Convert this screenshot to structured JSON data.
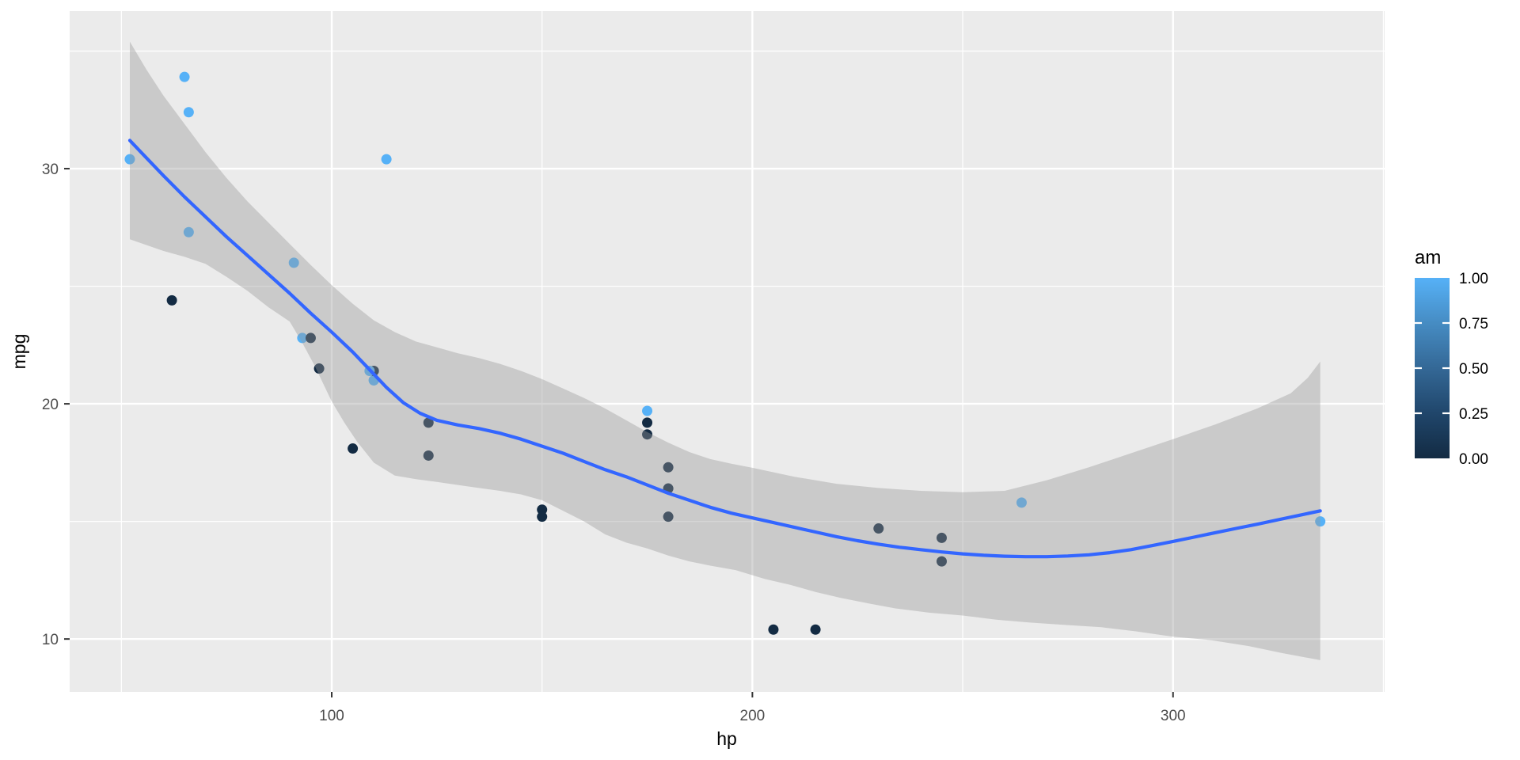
{
  "chart_data": {
    "type": "scatter",
    "title": "",
    "xlabel": "hp",
    "ylabel": "mpg",
    "x_ticks": [
      100,
      200,
      300
    ],
    "x_minor_ticks": [
      50,
      150,
      250,
      350
    ],
    "y_ticks": [
      10,
      20,
      30
    ],
    "y_minor_ticks": [
      15,
      25,
      35
    ],
    "xlim": [
      37.7,
      350.3
    ],
    "ylim": [
      7.75,
      36.7
    ],
    "grid": "major and minor, white on grey panel",
    "legend_position": "right",
    "points": [
      {
        "hp": 110,
        "mpg": 21.0,
        "am": 1
      },
      {
        "hp": 110,
        "mpg": 21.0,
        "am": 1
      },
      {
        "hp": 93,
        "mpg": 22.8,
        "am": 1
      },
      {
        "hp": 110,
        "mpg": 21.4,
        "am": 0
      },
      {
        "hp": 175,
        "mpg": 18.7,
        "am": 0
      },
      {
        "hp": 105,
        "mpg": 18.1,
        "am": 0
      },
      {
        "hp": 245,
        "mpg": 14.3,
        "am": 0
      },
      {
        "hp": 62,
        "mpg": 24.4,
        "am": 0
      },
      {
        "hp": 95,
        "mpg": 22.8,
        "am": 0
      },
      {
        "hp": 123,
        "mpg": 19.2,
        "am": 0
      },
      {
        "hp": 123,
        "mpg": 17.8,
        "am": 0
      },
      {
        "hp": 180,
        "mpg": 16.4,
        "am": 0
      },
      {
        "hp": 180,
        "mpg": 17.3,
        "am": 0
      },
      {
        "hp": 180,
        "mpg": 15.2,
        "am": 0
      },
      {
        "hp": 205,
        "mpg": 10.4,
        "am": 0
      },
      {
        "hp": 215,
        "mpg": 10.4,
        "am": 0
      },
      {
        "hp": 230,
        "mpg": 14.7,
        "am": 0
      },
      {
        "hp": 66,
        "mpg": 32.4,
        "am": 1
      },
      {
        "hp": 52,
        "mpg": 30.4,
        "am": 1
      },
      {
        "hp": 65,
        "mpg": 33.9,
        "am": 1
      },
      {
        "hp": 97,
        "mpg": 21.5,
        "am": 0
      },
      {
        "hp": 150,
        "mpg": 15.5,
        "am": 0
      },
      {
        "hp": 150,
        "mpg": 15.2,
        "am": 0
      },
      {
        "hp": 245,
        "mpg": 13.3,
        "am": 0
      },
      {
        "hp": 175,
        "mpg": 19.2,
        "am": 0
      },
      {
        "hp": 66,
        "mpg": 27.3,
        "am": 1
      },
      {
        "hp": 91,
        "mpg": 26.0,
        "am": 1
      },
      {
        "hp": 113,
        "mpg": 30.4,
        "am": 1
      },
      {
        "hp": 264,
        "mpg": 15.8,
        "am": 1
      },
      {
        "hp": 175,
        "mpg": 19.7,
        "am": 1
      },
      {
        "hp": 335,
        "mpg": 15.0,
        "am": 1
      },
      {
        "hp": 109,
        "mpg": 21.4,
        "am": 1
      }
    ],
    "smooth_line": [
      [
        52,
        31.2
      ],
      [
        56,
        30.45
      ],
      [
        60,
        29.7
      ],
      [
        65,
        28.8
      ],
      [
        70,
        27.95
      ],
      [
        75,
        27.1
      ],
      [
        80,
        26.3
      ],
      [
        85,
        25.5
      ],
      [
        90,
        24.7
      ],
      [
        95,
        23.85
      ],
      [
        100,
        23.05
      ],
      [
        105,
        22.2
      ],
      [
        109,
        21.45
      ],
      [
        113,
        20.7
      ],
      [
        117,
        20.05
      ],
      [
        121,
        19.6
      ],
      [
        125,
        19.3
      ],
      [
        130,
        19.1
      ],
      [
        135,
        18.95
      ],
      [
        140,
        18.75
      ],
      [
        145,
        18.5
      ],
      [
        150,
        18.2
      ],
      [
        155,
        17.9
      ],
      [
        160,
        17.55
      ],
      [
        165,
        17.2
      ],
      [
        170,
        16.9
      ],
      [
        175,
        16.55
      ],
      [
        180,
        16.2
      ],
      [
        185,
        15.9
      ],
      [
        190,
        15.6
      ],
      [
        195,
        15.35
      ],
      [
        200,
        15.15
      ],
      [
        205,
        14.95
      ],
      [
        210,
        14.75
      ],
      [
        215,
        14.55
      ],
      [
        220,
        14.35
      ],
      [
        225,
        14.18
      ],
      [
        230,
        14.03
      ],
      [
        235,
        13.9
      ],
      [
        240,
        13.8
      ],
      [
        245,
        13.7
      ],
      [
        250,
        13.62
      ],
      [
        255,
        13.56
      ],
      [
        260,
        13.52
      ],
      [
        265,
        13.5
      ],
      [
        270,
        13.5
      ],
      [
        275,
        13.53
      ],
      [
        280,
        13.58
      ],
      [
        285,
        13.67
      ],
      [
        290,
        13.8
      ],
      [
        295,
        13.97
      ],
      [
        300,
        14.15
      ],
      [
        305,
        14.33
      ],
      [
        310,
        14.52
      ],
      [
        315,
        14.7
      ],
      [
        320,
        14.88
      ],
      [
        325,
        15.07
      ],
      [
        330,
        15.26
      ],
      [
        335,
        15.45
      ]
    ],
    "ribbon_upper": [
      [
        52,
        35.4
      ],
      [
        56,
        34.2
      ],
      [
        60,
        33.1
      ],
      [
        65,
        31.9
      ],
      [
        70,
        30.7
      ],
      [
        75,
        29.6
      ],
      [
        80,
        28.6
      ],
      [
        85,
        27.7
      ],
      [
        90,
        26.8
      ],
      [
        95,
        25.9
      ],
      [
        100,
        25.05
      ],
      [
        105,
        24.25
      ],
      [
        110,
        23.55
      ],
      [
        115,
        23.05
      ],
      [
        120,
        22.65
      ],
      [
        125,
        22.4
      ],
      [
        130,
        22.15
      ],
      [
        135,
        21.95
      ],
      [
        140,
        21.7
      ],
      [
        145,
        21.4
      ],
      [
        150,
        21.05
      ],
      [
        155,
        20.65
      ],
      [
        160,
        20.25
      ],
      [
        165,
        19.8
      ],
      [
        170,
        19.3
      ],
      [
        175,
        18.8
      ],
      [
        180,
        18.35
      ],
      [
        185,
        17.95
      ],
      [
        190,
        17.65
      ],
      [
        195,
        17.45
      ],
      [
        200,
        17.28
      ],
      [
        210,
        16.9
      ],
      [
        220,
        16.6
      ],
      [
        230,
        16.42
      ],
      [
        240,
        16.3
      ],
      [
        250,
        16.24
      ],
      [
        260,
        16.3
      ],
      [
        270,
        16.75
      ],
      [
        280,
        17.3
      ],
      [
        290,
        17.9
      ],
      [
        300,
        18.5
      ],
      [
        310,
        19.12
      ],
      [
        320,
        19.8
      ],
      [
        328,
        20.45
      ],
      [
        332,
        21.1
      ],
      [
        335,
        21.8
      ]
    ],
    "ribbon_lower": [
      [
        52,
        27.0
      ],
      [
        56,
        26.75
      ],
      [
        60,
        26.5
      ],
      [
        65,
        26.25
      ],
      [
        70,
        25.95
      ],
      [
        75,
        25.4
      ],
      [
        80,
        24.8
      ],
      [
        85,
        24.1
      ],
      [
        90,
        23.5
      ],
      [
        93,
        22.6
      ],
      [
        96,
        21.6
      ],
      [
        100,
        20.1
      ],
      [
        103,
        19.2
      ],
      [
        106,
        18.4
      ],
      [
        110,
        17.5
      ],
      [
        115,
        16.95
      ],
      [
        120,
        16.8
      ],
      [
        125,
        16.68
      ],
      [
        130,
        16.55
      ],
      [
        135,
        16.42
      ],
      [
        140,
        16.3
      ],
      [
        145,
        16.15
      ],
      [
        150,
        15.9
      ],
      [
        155,
        15.45
      ],
      [
        160,
        15.0
      ],
      [
        165,
        14.45
      ],
      [
        170,
        14.1
      ],
      [
        175,
        13.85
      ],
      [
        180,
        13.55
      ],
      [
        185,
        13.3
      ],
      [
        190,
        13.12
      ],
      [
        196,
        12.93
      ],
      [
        203,
        12.55
      ],
      [
        209,
        12.3
      ],
      [
        215,
        12.0
      ],
      [
        221,
        11.75
      ],
      [
        228,
        11.5
      ],
      [
        234,
        11.3
      ],
      [
        242,
        11.12
      ],
      [
        250,
        11.0
      ],
      [
        258,
        10.82
      ],
      [
        266,
        10.7
      ],
      [
        274,
        10.6
      ],
      [
        283,
        10.5
      ],
      [
        291,
        10.33
      ],
      [
        300,
        10.1
      ],
      [
        309,
        9.95
      ],
      [
        318,
        9.7
      ],
      [
        326,
        9.4
      ],
      [
        335,
        9.1
      ]
    ],
    "legend": {
      "title": "am",
      "tick_labels": [
        "1.00",
        "0.75",
        "0.50",
        "0.25",
        "0.00"
      ],
      "tick_values": [
        1.0,
        0.75,
        0.5,
        0.25,
        0.0
      ],
      "low_color": "#132B43",
      "high_color": "#56B1F7",
      "gradient_stops": [
        "#56B1F7",
        "#468CC3",
        "#346896",
        "#20466B",
        "#132B43"
      ]
    },
    "colors": {
      "panel_bg": "#EBEBEB",
      "grid": "#FFFFFF",
      "tick_text": "#4D4D4D",
      "axis_title": "#000000",
      "tick_mark": "#333333",
      "point_low": "#132B43",
      "point_high": "#56B1F7",
      "smooth_line": "#3366FF",
      "ribbon_fill": "#999999",
      "ribbon_opacity": 0.4
    }
  }
}
